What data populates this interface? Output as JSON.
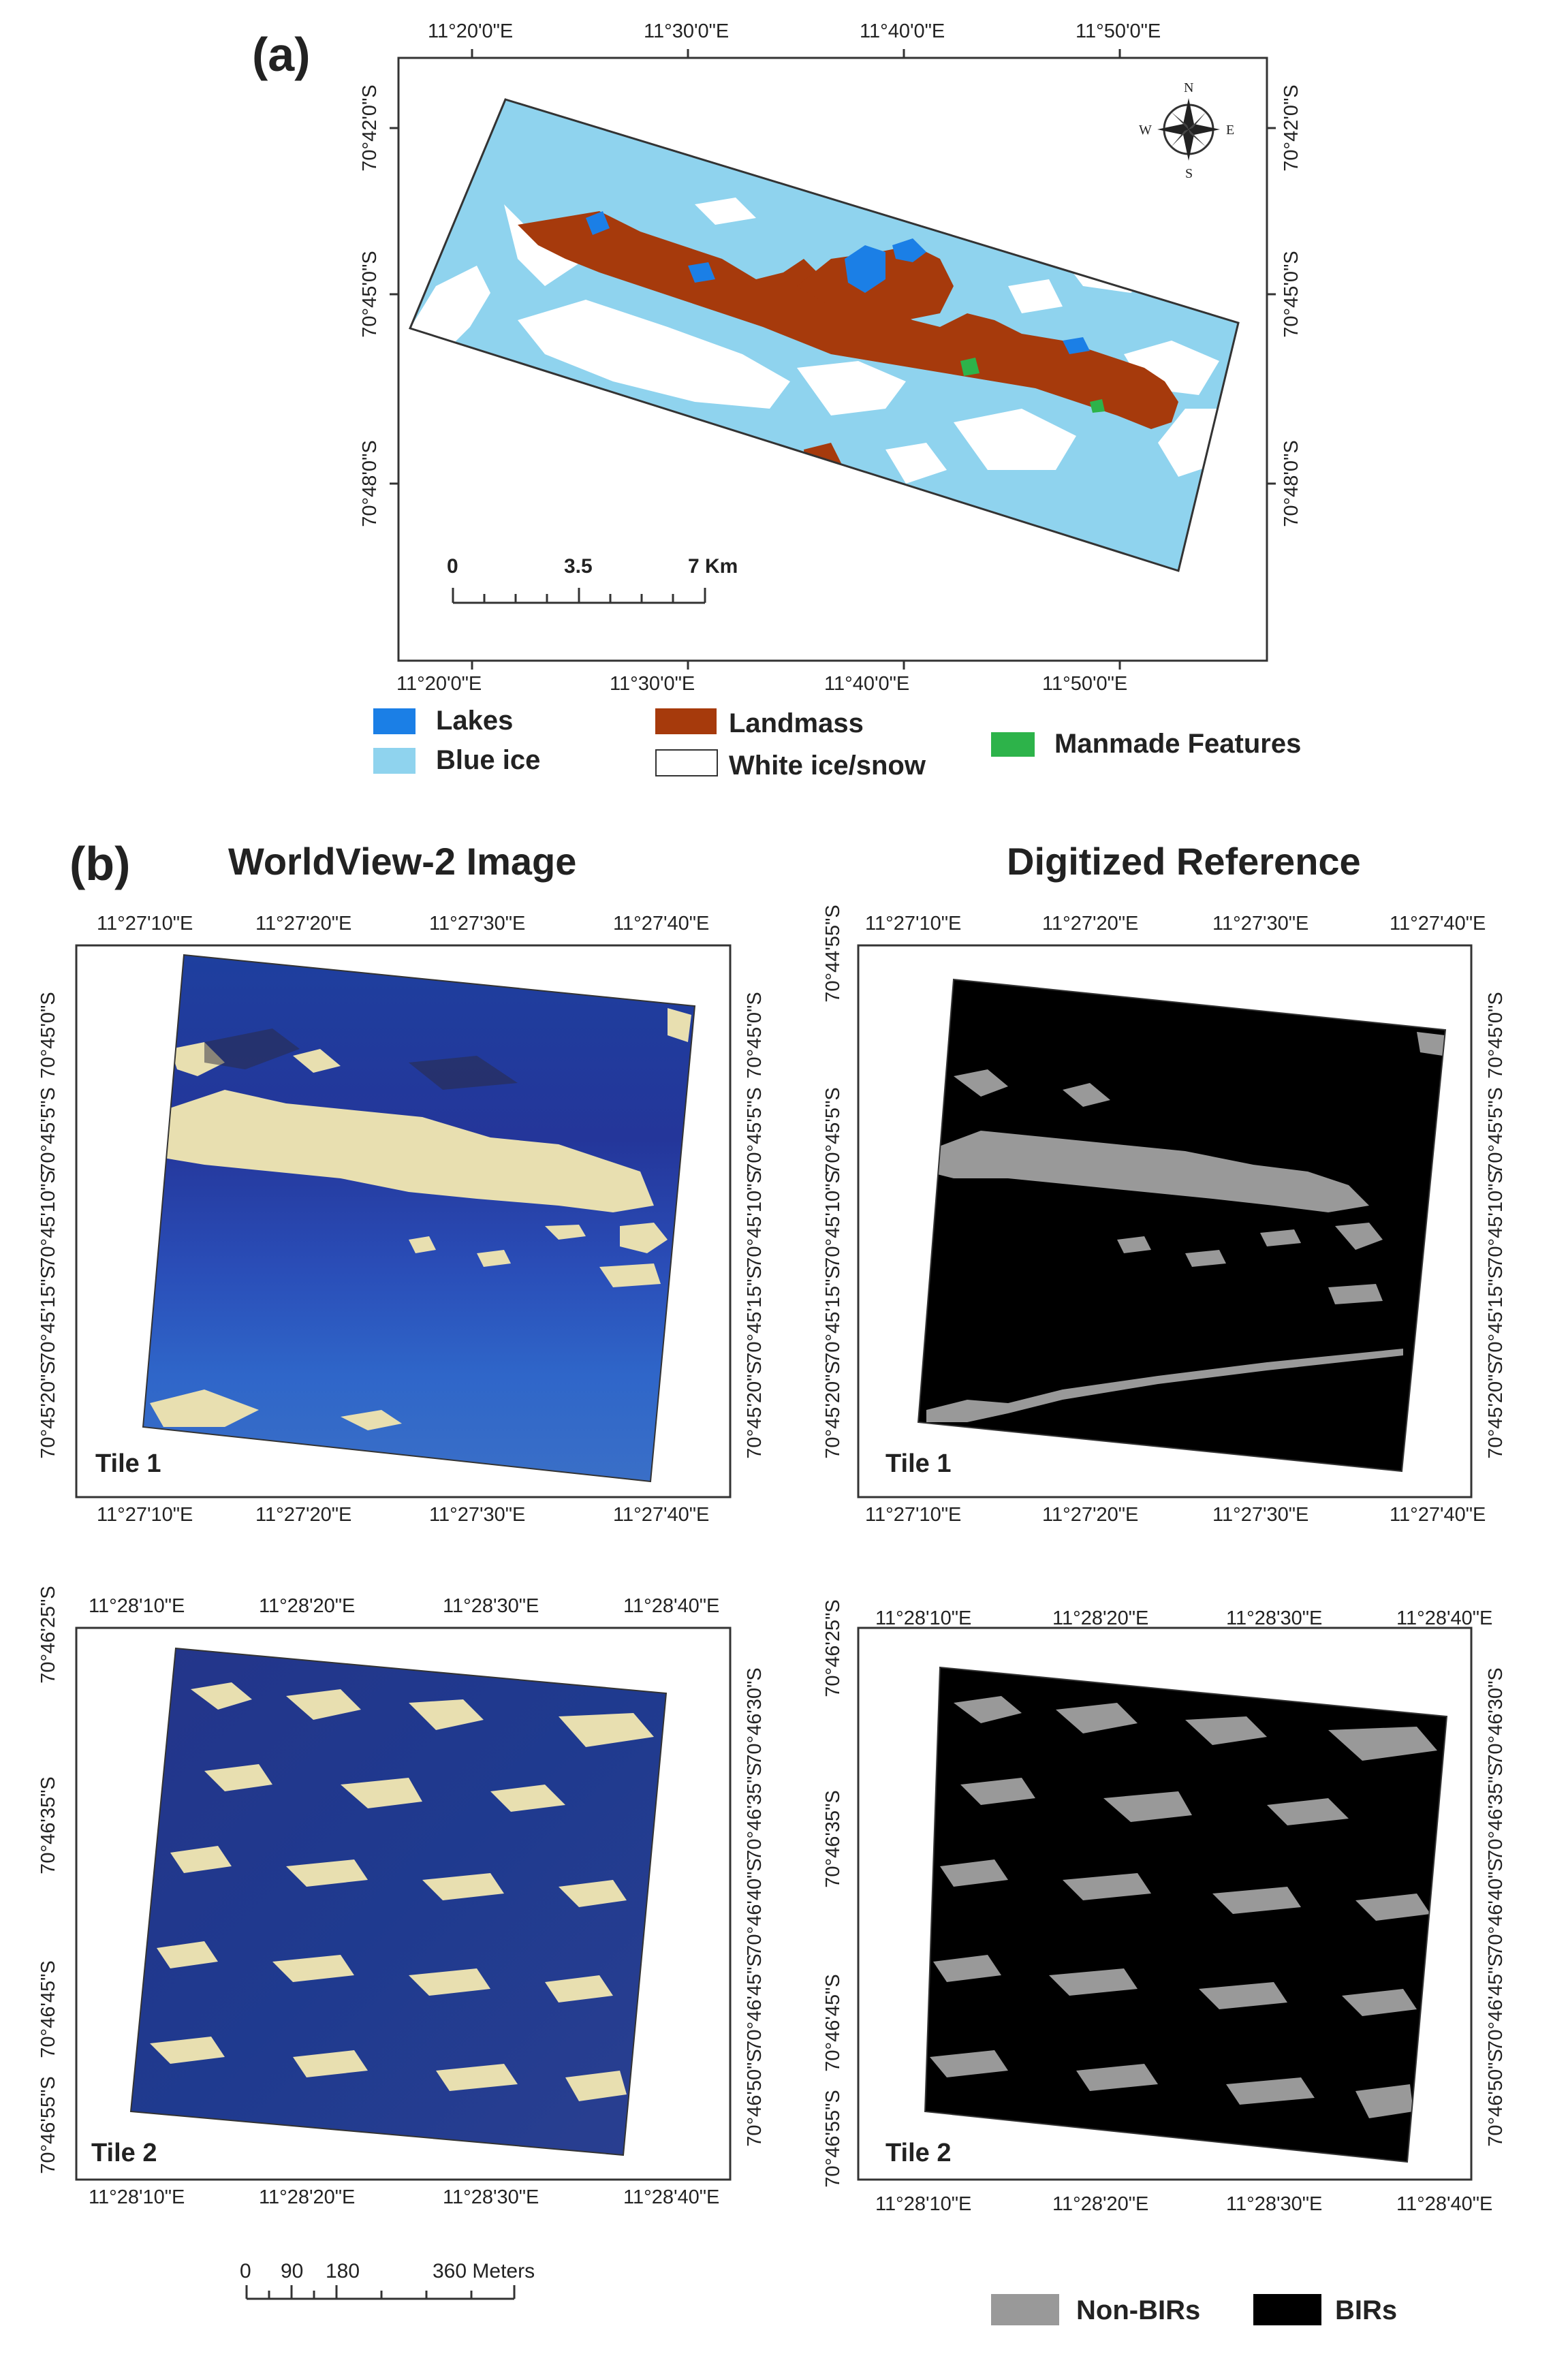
{
  "panel_a": {
    "letter": "(a)",
    "top_lon": [
      "11°20'0\"E",
      "11°30'0\"E",
      "11°40'0\"E",
      "11°50'0\"E"
    ],
    "bottom_lon": [
      "11°20'0\"E",
      "11°30'0\"E",
      "11°40'0\"E",
      "11°50'0\"E"
    ],
    "left_lat": [
      "70°42'0\"S",
      "70°45'0\"S",
      "70°48'0\"S"
    ],
    "right_lat": [
      "70°42'0\"S",
      "70°45'0\"S",
      "70°48'0\"S"
    ],
    "scalebar": {
      "labels": [
        "0",
        "3.5",
        "7 Km"
      ]
    },
    "compass": {
      "n": "N",
      "s": "S",
      "e": "E",
      "w": "W"
    },
    "legend": {
      "lakes": {
        "label": "Lakes",
        "color": "#1b7fe6"
      },
      "blue_ice": {
        "label": "Blue ice",
        "color": "#8fd3ee"
      },
      "landmass": {
        "label": "Landmass",
        "color": "#a63a0c"
      },
      "white_ice": {
        "label": "White ice/snow",
        "color": "#ffffff"
      },
      "manmade": {
        "label": "Manmade Features",
        "color": "#2db34a"
      }
    }
  },
  "panel_b": {
    "letter": "(b)",
    "title_left": "WorldView-2 Image",
    "title_right": "Digitized Reference",
    "tile1": {
      "label": "Tile 1",
      "top_lon": [
        "11°27'10\"E",
        "11°27'20\"E",
        "11°27'30\"E",
        "11°27'40\"E"
      ],
      "bottom_lon": [
        "11°27'10\"E",
        "11°27'20\"E",
        "11°27'30\"E",
        "11°27'40\"E"
      ],
      "left_lat": [
        "70°45'0\"S",
        "70°45'5\"S",
        "70°45'10\"S",
        "70°45'15\"S",
        "70°45'20\"S"
      ],
      "right_lat": [
        "70°45'0\"S",
        "70°45'5\"S",
        "70°45'10\"S",
        "70°45'15\"S",
        "70°45'20\"S"
      ],
      "ref_left_lat": [
        "70°44'55\"S",
        "70°45'5\"S",
        "70°45'10\"S",
        "70°45'15\"S",
        "70°45'20\"S"
      ]
    },
    "tile2": {
      "label": "Tile 2",
      "top_lon": [
        "11°28'10\"E",
        "11°28'20\"E",
        "11°28'30\"E",
        "11°28'40\"E"
      ],
      "bottom_lon": [
        "11°28'10\"E",
        "11°28'20\"E",
        "11°28'30\"E",
        "11°28'40\"E"
      ],
      "left_lat": [
        "70°46'25\"S",
        "70°46'35\"S",
        "70°46'45\"S",
        "70°46'55\"S"
      ],
      "right_lat": [
        "70°46'30\"S",
        "70°46'35\"S",
        "70°46'40\"S",
        "70°46'45\"S",
        "70°46'50\"S"
      ]
    },
    "scalebar": {
      "labels": [
        "0",
        "90",
        "180",
        "360 Meters"
      ]
    },
    "legend": {
      "non_birs": {
        "label": "Non-BIRs",
        "color": "#999999"
      },
      "birs": {
        "label": "BIRs",
        "color": "#000000"
      }
    }
  }
}
